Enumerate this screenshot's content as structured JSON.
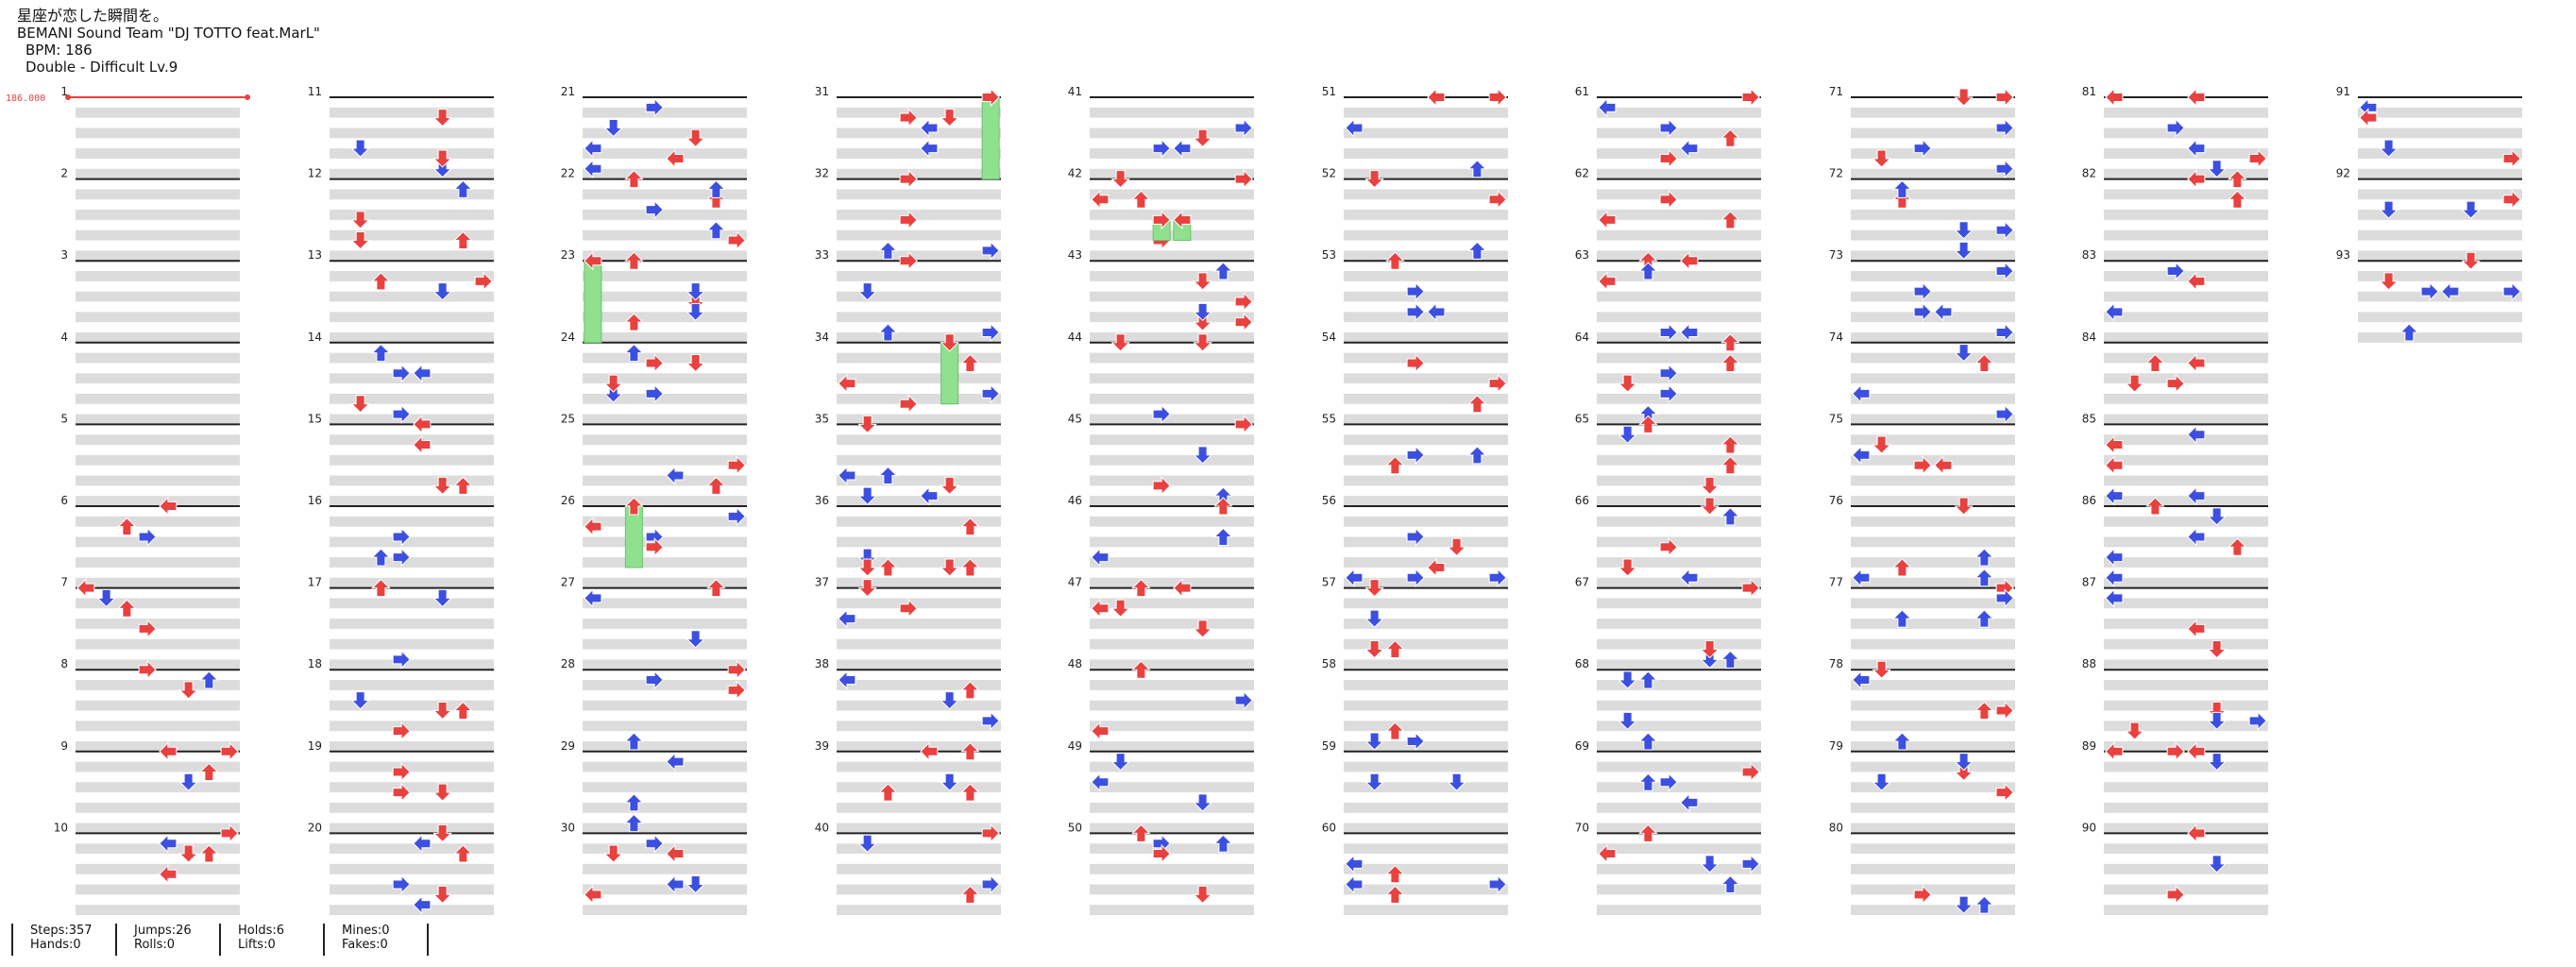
{
  "header": {
    "title": "星座が恋した瞬間を。",
    "artist": "BEMANI Sound Team \"DJ TOTTO feat.MarL\"",
    "bpm": "BPM: 186",
    "difficulty": "Double - Difficult Lv.9"
  },
  "bpm_marker": "186.000",
  "colors": {
    "red": "#e8413f",
    "blue": "#3c4fe0",
    "hold": "#8fe18f",
    "lane": "#dcdcdc",
    "line": "#222222"
  },
  "measure_labels": [
    "1",
    "2",
    "3",
    "4",
    "5",
    "6",
    "7",
    "8",
    "9",
    "10",
    "11",
    "12",
    "13",
    "14",
    "15",
    "16",
    "17",
    "18",
    "19",
    "20",
    "21",
    "22",
    "23",
    "24",
    "25",
    "26",
    "27",
    "28",
    "29",
    "30",
    "31",
    "32",
    "33",
    "34",
    "35",
    "36",
    "37",
    "38",
    "39",
    "40",
    "41",
    "42",
    "43",
    "44",
    "45",
    "46",
    "47",
    "48",
    "49",
    "50",
    "51",
    "52",
    "53",
    "54",
    "55",
    "56",
    "57",
    "58",
    "59",
    "60",
    "61",
    "62",
    "63",
    "64",
    "65",
    "66",
    "67",
    "68",
    "69",
    "70",
    "71",
    "72",
    "73",
    "74",
    "75",
    "76",
    "77",
    "78",
    "79",
    "80",
    "81",
    "82",
    "83",
    "84",
    "85",
    "86",
    "87",
    "88",
    "89",
    "90",
    "91",
    "92",
    "93"
  ],
  "chart_data": {
    "type": "step-chart",
    "style": "Double",
    "bpm": 186,
    "measures_total": 93,
    "column_order": [
      "P1-Left",
      "P1-Down",
      "P1-Up",
      "P1-Right",
      "P2-Left",
      "P2-Down",
      "P2-Up",
      "P2-Right"
    ],
    "notes_sample_measures_1_10": [
      {
        "m": 6,
        "beat": 0,
        "col": 4
      },
      {
        "m": 6,
        "beat": 1,
        "col": 2
      },
      {
        "m": 6,
        "beat": 1.5,
        "col": 3
      },
      {
        "m": 7,
        "beat": 0,
        "col": 0
      },
      {
        "m": 7,
        "beat": 0.5,
        "col": 1
      },
      {
        "m": 7,
        "beat": 1,
        "col": 2
      },
      {
        "m": 7,
        "beat": 2,
        "col": 3
      },
      {
        "m": 8,
        "beat": 0,
        "col": 3
      },
      {
        "m": 8,
        "beat": 0.5,
        "col": 6
      },
      {
        "m": 8,
        "beat": 1,
        "col": 5
      },
      {
        "m": 9,
        "beat": 0,
        "col": 4
      },
      {
        "m": 9,
        "beat": 0,
        "col": 7
      },
      {
        "m": 9,
        "beat": 1,
        "col": 6
      },
      {
        "m": 9,
        "beat": 1.5,
        "col": 5
      },
      {
        "m": 10,
        "beat": 0,
        "col": 7
      },
      {
        "m": 10,
        "beat": 0.5,
        "col": 4
      },
      {
        "m": 10,
        "beat": 1,
        "col": 5
      },
      {
        "m": 10,
        "beat": 1,
        "col": 6
      },
      {
        "m": 10,
        "beat": 2,
        "col": 4
      }
    ]
  },
  "stats": {
    "steps": "Steps:357",
    "hands": "Hands:0",
    "jumps": "Jumps:26",
    "rolls": "Rolls:0",
    "holds": "Holds:6",
    "lifts": "Lifts:0",
    "mines": "Mines:0",
    "fakes": "Fakes:0"
  }
}
